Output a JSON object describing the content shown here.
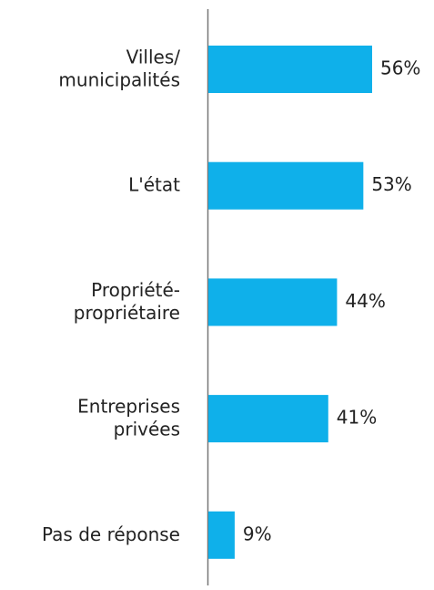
{
  "chart_data": {
    "type": "bar",
    "orientation": "horizontal",
    "categories": [
      "Villes/\nmunicipalités",
      "L'état",
      "Propriété-\npropriétaire",
      "Entreprises\nprivées",
      "Pas de réponse"
    ],
    "values": [
      56,
      53,
      44,
      41,
      9
    ],
    "value_labels": [
      "56%",
      "53%",
      "44%",
      "41%",
      "9%"
    ],
    "color": "#0fb0ea"
  }
}
